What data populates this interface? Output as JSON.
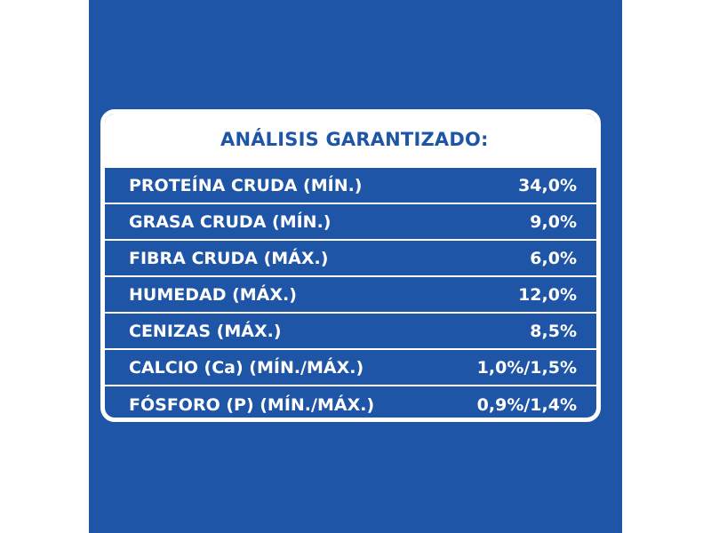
{
  "table": {
    "title": "ANÁLISIS GARANTIZADO:",
    "rows": [
      {
        "label": "PROTEÍNA CRUDA (MÍN.)",
        "value": "34,0%"
      },
      {
        "label": "GRASA CRUDA (MÍN.)",
        "value": "9,0%"
      },
      {
        "label": "FIBRA CRUDA (MÁX.)",
        "value": "6,0%"
      },
      {
        "label": "HUMEDAD (MÁX.)",
        "value": "12,0%"
      },
      {
        "label": "CENIZAS (MÁX.)",
        "value": "8,5%"
      },
      {
        "label": "CALCIO (Ca) (MÍN./MÁX.)",
        "value": "1,0%/1,5%"
      },
      {
        "label": "FÓSFORO (P) (MÍN./MÁX.)",
        "value": "0,9%/1,4%"
      }
    ]
  },
  "colors": {
    "panel_blue": "#1e55a6",
    "text_white": "#ffffff",
    "background": "#ffffff"
  }
}
